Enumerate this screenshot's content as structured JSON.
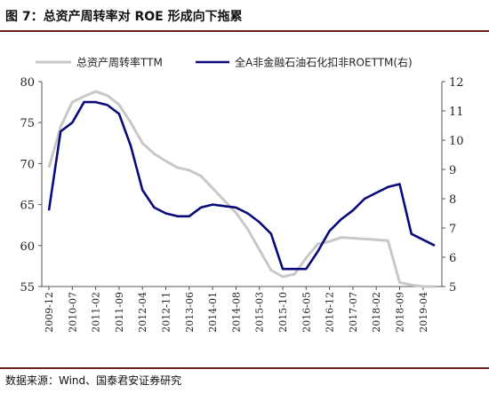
{
  "figure": {
    "title": "图 7：总资产周转率对 ROE 形成向下拖累",
    "source": "数据来源：Wind、国泰君安证券研究"
  },
  "chart_data": {
    "type": "line",
    "x": [
      "2009-12",
      "2010-03",
      "2010-07",
      "2010-10",
      "2011-02",
      "2011-05",
      "2011-09",
      "2011-12",
      "2012-04",
      "2012-07",
      "2012-11",
      "2013-02",
      "2013-06",
      "2013-09",
      "2014-01",
      "2014-04",
      "2014-08",
      "2014-11",
      "2015-03",
      "2015-06",
      "2015-10",
      "2016-01",
      "2016-05",
      "2016-08",
      "2016-12",
      "2017-03",
      "2017-07",
      "2017-10",
      "2018-02",
      "2018-05",
      "2018-09",
      "2018-12",
      "2019-04",
      "2019-07"
    ],
    "x_tick_labels": [
      "2009-12",
      "2010-07",
      "2011-02",
      "2011-09",
      "2012-04",
      "2012-11",
      "2013-06",
      "2014-01",
      "2014-08",
      "2015-03",
      "2015-10",
      "2016-05",
      "2016-12",
      "2017-07",
      "2018-02",
      "2018-09",
      "2019-04"
    ],
    "series": [
      {
        "name": "总资产周转率TTM",
        "axis": "left",
        "color": "#c8c8c8",
        "values": [
          69.5,
          74.5,
          77.5,
          78.2,
          78.8,
          78.3,
          77.2,
          75.0,
          72.5,
          71.2,
          70.3,
          69.5,
          69.2,
          68.5,
          67.0,
          65.5,
          64.0,
          62.0,
          59.5,
          57.0,
          56.2,
          56.5,
          58.5,
          60.2,
          60.5,
          61.0,
          60.9,
          60.8,
          60.7,
          60.6,
          55.5,
          55.2,
          55.0,
          55.0
        ]
      },
      {
        "name": "全A非金融石油石化扣非ROETTM(右)",
        "axis": "right",
        "color": "#0a0a7a",
        "values": [
          7.6,
          10.3,
          10.6,
          11.3,
          11.3,
          11.2,
          10.9,
          9.8,
          8.3,
          7.7,
          7.5,
          7.4,
          7.4,
          7.7,
          7.8,
          7.75,
          7.7,
          7.5,
          7.2,
          6.8,
          5.6,
          5.6,
          5.6,
          6.2,
          6.9,
          7.3,
          7.6,
          8.0,
          8.2,
          8.4,
          8.5,
          6.8,
          6.6,
          6.4
        ]
      }
    ],
    "y_left": {
      "min": 55,
      "max": 80,
      "ticks": [
        55,
        60,
        65,
        70,
        75,
        80
      ]
    },
    "y_right": {
      "min": 5,
      "max": 12,
      "ticks": [
        5,
        6,
        7,
        8,
        9,
        10,
        11,
        12
      ]
    },
    "grid": false,
    "legend_position": "top"
  }
}
